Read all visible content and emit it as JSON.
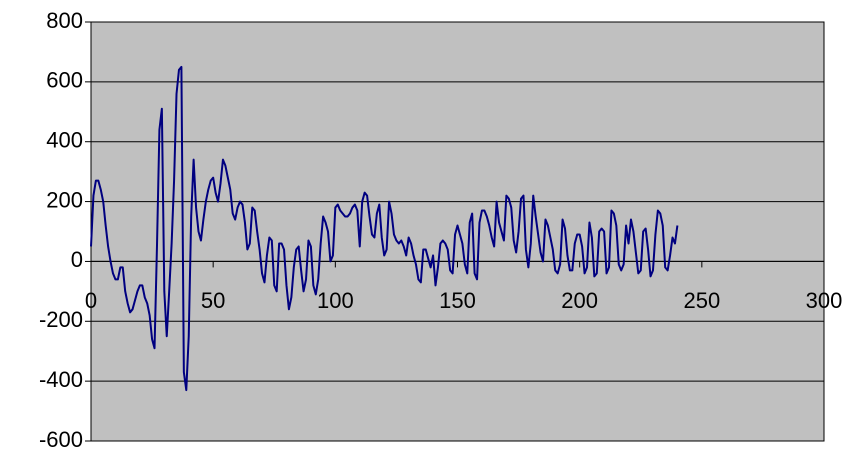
{
  "chart_data": {
    "type": "line",
    "x": [
      0,
      1,
      2,
      3,
      4,
      5,
      6,
      7,
      8,
      9,
      10,
      11,
      12,
      13,
      14,
      15,
      16,
      17,
      18,
      19,
      20,
      21,
      22,
      23,
      24,
      25,
      26,
      27,
      28,
      29,
      30,
      31,
      32,
      33,
      34,
      35,
      36,
      37,
      38,
      39,
      40,
      41,
      42,
      43,
      44,
      45,
      46,
      47,
      48,
      49,
      50,
      51,
      52,
      53,
      54,
      55,
      56,
      57,
      58,
      59,
      60,
      61,
      62,
      63,
      64,
      65,
      66,
      67,
      68,
      69,
      70,
      71,
      72,
      73,
      74,
      75,
      76,
      77,
      78,
      79,
      80,
      81,
      82,
      83,
      84,
      85,
      86,
      87,
      88,
      89,
      90,
      91,
      92,
      93,
      94,
      95,
      96,
      97,
      98,
      99,
      100,
      101,
      102,
      103,
      104,
      105,
      106,
      107,
      108,
      109,
      110,
      111,
      112,
      113,
      114,
      115,
      116,
      117,
      118,
      119,
      120,
      121,
      122,
      123,
      124,
      125,
      126,
      127,
      128,
      129,
      130,
      131,
      132,
      133,
      134,
      135,
      136,
      137,
      138,
      139,
      140,
      141,
      142,
      143,
      144,
      145,
      146,
      147,
      148,
      149,
      150,
      151,
      152,
      153,
      154,
      155,
      156,
      157,
      158,
      159,
      160,
      161,
      162,
      163,
      164,
      165,
      166,
      167,
      168,
      169,
      170,
      171,
      172,
      173,
      174,
      175,
      176,
      177,
      178,
      179,
      180,
      181,
      182,
      183,
      184,
      185,
      186,
      187,
      188,
      189,
      190,
      191,
      192,
      193,
      194,
      195,
      196,
      197,
      198,
      199,
      200,
      201,
      202,
      203,
      204,
      205,
      206,
      207,
      208,
      209,
      210,
      211,
      212,
      213,
      214,
      215,
      216,
      217,
      218,
      219,
      220,
      221,
      222,
      223,
      224,
      225,
      226,
      227,
      228,
      229,
      230,
      231,
      232,
      233,
      234,
      235,
      236,
      237,
      238,
      239,
      240
    ],
    "series": [
      {
        "color": "#000080",
        "values": [
          50,
          220,
          270,
          270,
          240,
          200,
          120,
          50,
          0,
          -40,
          -60,
          -60,
          -20,
          -20,
          -100,
          -140,
          -170,
          -160,
          -130,
          -100,
          -80,
          -80,
          -120,
          -140,
          -180,
          -260,
          -290,
          50,
          440,
          510,
          -100,
          -250,
          -100,
          60,
          270,
          560,
          640,
          650,
          -370,
          -430,
          -250,
          150,
          340,
          180,
          100,
          70,
          140,
          200,
          240,
          270,
          280,
          230,
          200,
          260,
          340,
          320,
          280,
          240,
          160,
          140,
          180,
          200,
          190,
          130,
          40,
          60,
          180,
          170,
          100,
          40,
          -40,
          -70,
          20,
          80,
          70,
          -80,
          -100,
          60,
          60,
          40,
          -80,
          -160,
          -120,
          -20,
          40,
          50,
          -30,
          -100,
          -60,
          70,
          50,
          -80,
          -110,
          -60,
          60,
          150,
          130,
          100,
          0,
          20,
          180,
          190,
          170,
          160,
          150,
          150,
          160,
          180,
          190,
          170,
          50,
          200,
          230,
          220,
          150,
          90,
          80,
          160,
          190,
          80,
          20,
          40,
          200,
          160,
          90,
          70,
          60,
          70,
          50,
          20,
          80,
          60,
          20,
          -10,
          -60,
          -70,
          40,
          40,
          10,
          -20,
          20,
          -80,
          -20,
          60,
          70,
          60,
          40,
          -30,
          -40,
          90,
          120,
          90,
          60,
          -10,
          -40,
          130,
          160,
          -40,
          -60,
          130,
          170,
          170,
          150,
          120,
          80,
          50,
          200,
          130,
          100,
          70,
          220,
          210,
          180,
          70,
          30,
          100,
          210,
          220,
          40,
          -20,
          60,
          220,
          150,
          90,
          30,
          0,
          140,
          120,
          80,
          40,
          -30,
          -40,
          -10,
          140,
          110,
          20,
          -30,
          -30,
          60,
          90,
          90,
          50,
          -40,
          -20,
          130,
          80,
          -50,
          -40,
          100,
          110,
          100,
          -40,
          -20,
          170,
          160,
          120,
          -10,
          -30,
          -10,
          120,
          60,
          140,
          100,
          30,
          -40,
          -30,
          100,
          110,
          40,
          -50,
          -30,
          90,
          170,
          160,
          120,
          -20,
          -30,
          20,
          80,
          60,
          120
        ]
      }
    ],
    "xlim": [
      0,
      300
    ],
    "xticks": [
      0,
      50,
      100,
      150,
      200,
      250,
      300
    ],
    "ylim": [
      -600,
      800
    ],
    "yticks": [
      -600,
      -400,
      -200,
      0,
      200,
      400,
      600,
      800
    ],
    "grid": true,
    "background": "#c0c0c0"
  }
}
